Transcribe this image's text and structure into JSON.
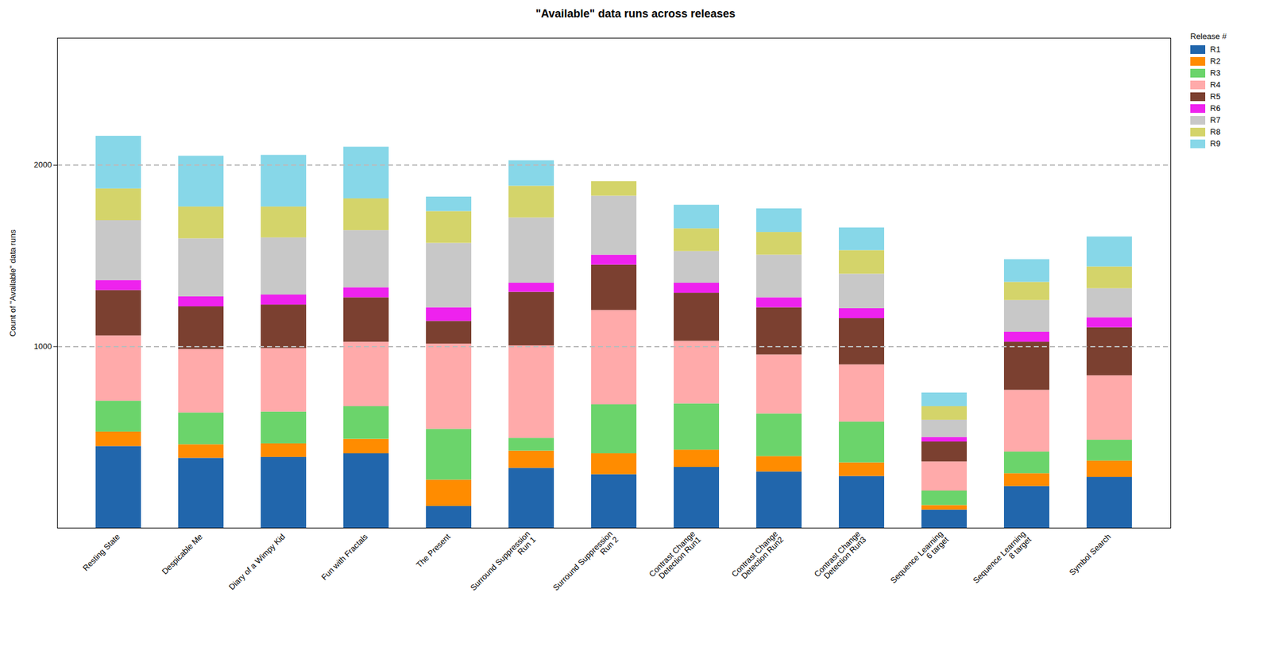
{
  "chart_data": {
    "type": "bar",
    "stacked": true,
    "title": "\"Available\" data runs across releases",
    "ylabel": "Count of \"Available\" data runs",
    "legend_title": "Release #",
    "legend": "upper right",
    "grid": true,
    "categories": [
      "Resting State",
      "Despicable Me",
      "Diary of a Wimpy Kid",
      "Fun with Fractals",
      "The Present",
      "Surround Suppression\nRun 1",
      "Surround Suppression\nRun 2",
      "Contrast Change\nDetection Run1",
      "Contrast Change\nDetection Run2",
      "Contrast Change\nDetection Run3",
      "Sequence Learning\n6 target",
      "Sequence Learning\n8 target",
      "Symbol Search"
    ],
    "series": [
      {
        "name": "R1",
        "color": "#2166ac",
        "values": [
          450,
          385,
          390,
          410,
          120,
          330,
          295,
          335,
          310,
          285,
          100,
          230,
          280
        ]
      },
      {
        "name": "R2",
        "color": "#ff8c00",
        "values": [
          80,
          75,
          75,
          80,
          145,
          95,
          115,
          95,
          85,
          75,
          25,
          70,
          90
        ]
      },
      {
        "name": "R3",
        "color": "#6bd46b",
        "values": [
          170,
          175,
          175,
          180,
          280,
          70,
          270,
          255,
          235,
          225,
          80,
          120,
          115
        ]
      },
      {
        "name": "R4",
        "color": "#ffaaaa",
        "values": [
          360,
          350,
          350,
          355,
          470,
          510,
          520,
          345,
          325,
          315,
          160,
          340,
          355
        ]
      },
      {
        "name": "R5",
        "color": "#7b4030",
        "values": [
          250,
          235,
          240,
          245,
          125,
          295,
          250,
          265,
          260,
          255,
          110,
          265,
          265
        ]
      },
      {
        "name": "R6",
        "color": "#ee22ee",
        "values": [
          55,
          55,
          55,
          55,
          75,
          50,
          55,
          55,
          55,
          55,
          25,
          55,
          55
        ]
      },
      {
        "name": "R7",
        "color": "#c8c8c8",
        "values": [
          330,
          320,
          315,
          315,
          355,
          360,
          325,
          175,
          235,
          190,
          95,
          175,
          160
        ]
      },
      {
        "name": "R8",
        "color": "#d4d46a",
        "values": [
          175,
          175,
          170,
          175,
          175,
          175,
          80,
          125,
          125,
          130,
          75,
          100,
          120
        ]
      },
      {
        "name": "R9",
        "color": "#87d7e8",
        "values": [
          290,
          280,
          285,
          285,
          80,
          140,
          0,
          130,
          130,
          125,
          75,
          125,
          165
        ]
      }
    ],
    "ylim": [
      0,
      2700
    ],
    "yticks": [
      1000,
      2000
    ]
  }
}
